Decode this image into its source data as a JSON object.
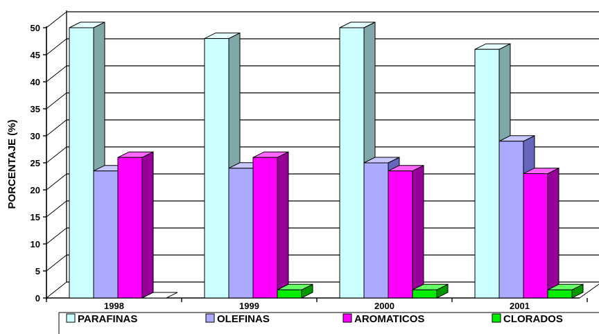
{
  "chart_data": {
    "type": "bar",
    "title": "",
    "xlabel": "",
    "ylabel": "PORCENTAJE (%)",
    "categories": [
      "1998",
      "1999",
      "2000",
      "2001"
    ],
    "series": [
      {
        "name": "PARAFINAS",
        "values": [
          50,
          48,
          50,
          46
        ]
      },
      {
        "name": "OLEFINAS",
        "values": [
          23.5,
          24,
          25,
          29
        ]
      },
      {
        "name": "AROMATICOS",
        "values": [
          26,
          26,
          23.5,
          23
        ]
      },
      {
        "name": "CLORADOS",
        "values": [
          0,
          1.5,
          1.5,
          1.5
        ]
      }
    ],
    "ylim": [
      0,
      50
    ],
    "yticks": [
      0,
      5,
      10,
      15,
      20,
      25,
      30,
      35,
      40,
      45,
      50
    ],
    "grid": true,
    "legend_position": "bottom",
    "style": "3d-bar",
    "colors": {
      "PARAFINAS": {
        "front": "#ccffff",
        "top": "#e6ffff",
        "side": "#80a8a8"
      },
      "OLEFINAS": {
        "front": "#aaaaff",
        "top": "#c8c8ff",
        "side": "#6666bb"
      },
      "AROMATICOS": {
        "front": "#ff00ff",
        "top": "#ff66ff",
        "side": "#990099"
      },
      "CLORADOS": {
        "front": "#00ee00",
        "top": "#66ff66",
        "side": "#009900"
      }
    }
  }
}
